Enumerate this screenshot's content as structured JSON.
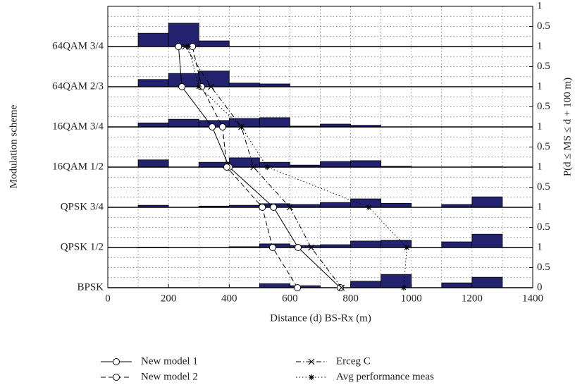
{
  "chart_data": {
    "type": "line",
    "x_label": "Distance (d) BS-Rx (m)",
    "y_label": "Modulation scheme",
    "y2_label": "P(d ≤ MS ≤ d + 100 m)",
    "categories": [
      "BPSK",
      "QPSK 1/2",
      "QPSK 3/4",
      "16QAM 1/2",
      "16QAM 3/4",
      "64QAM 2/3",
      "64QAM 3/4"
    ],
    "xlim": [
      0,
      1400
    ],
    "xticks": [
      0,
      200,
      400,
      600,
      800,
      1000,
      1200,
      1400
    ],
    "y2lim": [
      0,
      1
    ],
    "y2ticks": [
      0,
      0.5,
      1
    ],
    "grid": true,
    "series": [
      {
        "name": "New model 1",
        "color": "#000000",
        "dash": "solid",
        "marker": "circle",
        "values": [
          766,
          627,
          546,
          400,
          344,
          244,
          233
        ]
      },
      {
        "name": "New model 2",
        "color": "#000000",
        "dash": "dashed",
        "marker": "circle",
        "values": [
          625,
          543,
          509,
          392,
          378,
          309,
          279
        ]
      },
      {
        "name": "Erceg C",
        "color": "#000000",
        "dash": "dashdot",
        "marker": "x",
        "values": [
          770,
          670,
          600,
          480,
          440,
          340,
          255
        ]
      },
      {
        "name": "Avg performance meas",
        "color": "#000000",
        "dash": "dotted",
        "marker": "star",
        "values": [
          975,
          985,
          860,
          525,
          440,
          300,
          265
        ]
      }
    ],
    "bins": [
      100,
      200,
      300,
      400,
      500,
      600,
      700,
      800,
      900,
      1000,
      1100,
      1200,
      1300
    ],
    "bar_color": "#22226e",
    "strips": [
      {
        "values": [
          0,
          0,
          0,
          0,
          0.1,
          0.05,
          0,
          0.16,
          0.33,
          0,
          0.12,
          0.26
        ]
      },
      {
        "values": [
          0.01,
          0,
          0,
          0.02,
          0.09,
          0.05,
          0.07,
          0.16,
          0.18,
          0,
          0.14,
          0.33
        ]
      },
      {
        "values": [
          0.05,
          0,
          0.03,
          0.05,
          0.09,
          0.07,
          0.12,
          0.21,
          0.1,
          0,
          0.07,
          0.26
        ]
      },
      {
        "values": [
          0.18,
          0,
          0.12,
          0.23,
          0.12,
          0.05,
          0.14,
          0.16,
          0.02,
          0,
          0,
          0.01
        ]
      },
      {
        "values": [
          0.1,
          0.19,
          0.16,
          0.21,
          0.23,
          0.02,
          0.07,
          0.04,
          0,
          0,
          0,
          0
        ]
      },
      {
        "values": [
          0.18,
          0.33,
          0.39,
          0.09,
          0.07,
          0,
          0,
          0,
          0,
          0,
          0,
          0
        ]
      },
      {
        "values": [
          0.33,
          0.58,
          0.14,
          0,
          0,
          0,
          0,
          0,
          0,
          0,
          0,
          0
        ]
      }
    ]
  }
}
